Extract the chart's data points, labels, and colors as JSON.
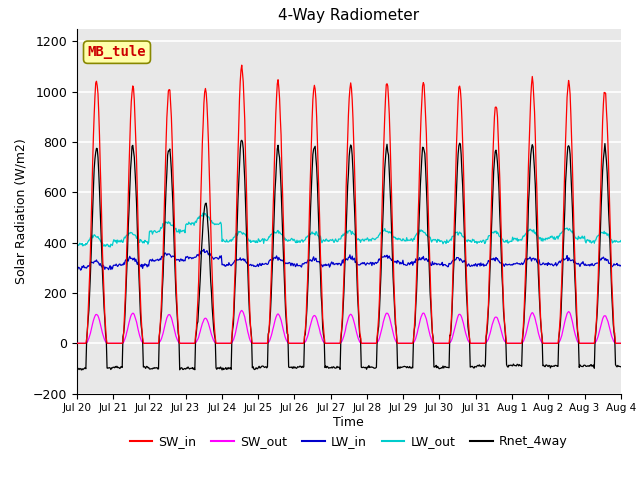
{
  "title": "4-Way Radiometer",
  "xlabel": "Time",
  "ylabel": "Solar Radiation (W/m2)",
  "ylim": [
    -200,
    1250
  ],
  "yticks": [
    -200,
    0,
    200,
    400,
    600,
    800,
    1000,
    1200
  ],
  "label_text": "MB_tule",
  "label_bg_color": "#ffffaa",
  "label_edge_color": "#888800",
  "label_text_color": "#cc0000",
  "colors": {
    "SW_in": "#ff0000",
    "SW_out": "#ff00ff",
    "LW_in": "#0000cc",
    "LW_out": "#00cccc",
    "Rnet_4way": "#000000"
  },
  "axes_bg_color": "#e8e8e8",
  "grid_color": "#ffffff",
  "xtick_labels": [
    "Jul 20",
    "Jul 21",
    "Jul 22",
    "Jul 23",
    "Jul 24",
    "Jul 25",
    "Jul 26",
    "Jul 27",
    "Jul 28",
    "Jul 29",
    "Jul 30",
    "Jul 31",
    "Aug 1",
    "Aug 2",
    "Aug 3",
    "Aug 4"
  ],
  "sw_in_peaks": [
    1045,
    1025,
    1020,
    1015,
    1100,
    1030,
    1020,
    1030,
    1035,
    1035,
    1020,
    950,
    1040,
    1035,
    1005
  ],
  "sw_out_peaks": [
    115,
    120,
    115,
    100,
    130,
    115,
    110,
    115,
    120,
    120,
    115,
    105,
    120,
    125,
    110
  ],
  "lw_in_base": [
    300,
    310,
    330,
    340,
    310,
    315,
    310,
    315,
    320,
    315,
    310,
    310,
    315,
    315,
    310
  ],
  "lw_out_base": [
    390,
    405,
    445,
    475,
    405,
    410,
    405,
    410,
    415,
    410,
    405,
    405,
    415,
    420,
    405
  ],
  "rnet_peaks": [
    780,
    785,
    780,
    560,
    810,
    780,
    790,
    785,
    790,
    790,
    790,
    770,
    790,
    790,
    780
  ],
  "rnet_night": [
    -100,
    -95,
    -100,
    -100,
    -100,
    -95,
    -95,
    -95,
    -95,
    -95,
    -95,
    -90,
    -90,
    -90,
    -90
  ]
}
